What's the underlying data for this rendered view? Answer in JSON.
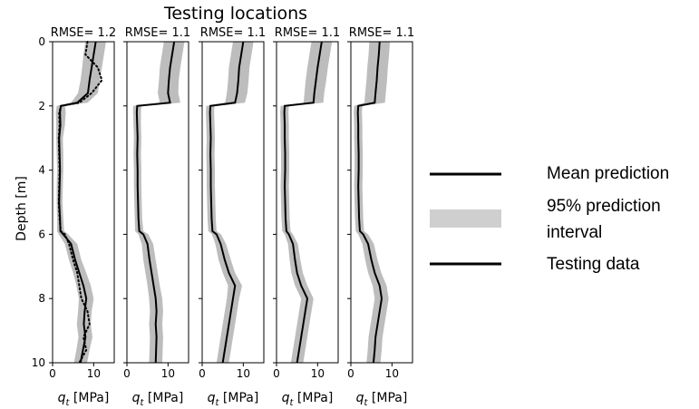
{
  "chart_data": {
    "type": "line",
    "title": "Testing locations",
    "ylabel": "Depth [m]",
    "xlabel_var": "q",
    "xlabel_sub": "t",
    "xlabel_unit": " [MPa]",
    "ylim": [
      0,
      10
    ],
    "y_inverted": true,
    "xlim": [
      0,
      15
    ],
    "x_ticks": [
      0,
      10
    ],
    "x_tick_labels": [
      "0",
      "10"
    ],
    "y_ticks": [
      0,
      2,
      4,
      6,
      8,
      10
    ],
    "y_tick_labels": [
      "0",
      "2",
      "4",
      "6",
      "8",
      "10"
    ],
    "legend": {
      "placement": "right",
      "mean_label": "Mean prediction",
      "pi_label_line1": "95% prediction",
      "pi_label_line2": "interval",
      "data_label": "Testing data"
    },
    "colors": {
      "mean": "#000000",
      "band": "#bdbdbd",
      "data": "#000000"
    },
    "panels": [
      {
        "rmse_label": "RMSE= 1.2",
        "depth": [
          0,
          0.4,
          0.8,
          1.2,
          1.6,
          1.9,
          2.0,
          2.2,
          2.6,
          3.0,
          3.5,
          4.0,
          4.5,
          5.0,
          5.5,
          5.9,
          6.0,
          6.3,
          6.8,
          7.2,
          7.6,
          8.0,
          8.4,
          8.8,
          9.2,
          9.6,
          10.0
        ],
        "mean": [
          10.5,
          10.0,
          9.5,
          9.0,
          8.6,
          6.0,
          2.0,
          1.8,
          1.9,
          1.6,
          1.7,
          1.8,
          1.7,
          1.6,
          1.8,
          1.9,
          2.6,
          4.5,
          5.5,
          6.5,
          7.5,
          8.2,
          7.8,
          7.6,
          8.0,
          7.4,
          6.8
        ],
        "lower": [
          8.0,
          7.5,
          7.2,
          6.8,
          6.2,
          4.5,
          1.0,
          0.8,
          0.9,
          0.9,
          1.0,
          1.1,
          1.0,
          1.0,
          1.1,
          1.1,
          1.5,
          3.0,
          4.0,
          5.0,
          5.8,
          6.4,
          6.2,
          5.9,
          6.3,
          5.8,
          5.2
        ],
        "upper": [
          13.0,
          12.5,
          12.0,
          11.5,
          11.0,
          8.5,
          3.0,
          3.2,
          3.0,
          2.5,
          2.6,
          2.6,
          2.5,
          2.4,
          2.6,
          2.8,
          3.8,
          6.0,
          7.0,
          8.2,
          9.3,
          10.0,
          9.5,
          9.3,
          9.7,
          9.0,
          8.4
        ],
        "data": [
          8.5,
          8.0,
          11.0,
          12.0,
          9.5,
          6.5,
          2.1,
          1.6,
          1.7,
          1.5,
          1.6,
          1.7,
          1.6,
          1.5,
          1.7,
          2.0,
          3.0,
          4.0,
          5.0,
          6.0,
          6.5,
          7.0,
          8.5,
          9.0,
          7.5,
          8.2,
          6.5
        ]
      },
      {
        "rmse_label": "RMSE= 1.1",
        "depth": [
          0,
          0.4,
          0.8,
          1.2,
          1.6,
          1.9,
          2.0,
          2.2,
          2.6,
          3.0,
          3.5,
          4.0,
          4.5,
          5.0,
          5.5,
          5.9,
          6.0,
          6.3,
          6.8,
          7.2,
          7.6,
          8.0,
          8.4,
          8.8,
          9.2,
          9.6,
          10.0
        ],
        "mean": [
          11.5,
          11.0,
          10.5,
          10.2,
          10.0,
          10.5,
          2.5,
          2.4,
          2.5,
          2.6,
          2.5,
          2.6,
          2.6,
          2.7,
          2.8,
          3.0,
          4.0,
          5.0,
          5.5,
          6.0,
          6.5,
          7.0,
          7.2,
          7.0,
          7.2,
          7.1,
          7.0
        ],
        "lower": [
          9.0,
          8.5,
          8.0,
          7.8,
          7.5,
          8.0,
          1.5,
          1.5,
          1.6,
          1.7,
          1.6,
          1.7,
          1.7,
          1.8,
          1.9,
          2.0,
          2.8,
          3.6,
          4.0,
          4.5,
          5.0,
          5.4,
          5.6,
          5.4,
          5.6,
          5.5,
          5.4
        ],
        "upper": [
          14.0,
          13.5,
          13.0,
          12.6,
          12.5,
          13.0,
          3.5,
          3.4,
          3.4,
          3.5,
          3.4,
          3.5,
          3.5,
          3.6,
          3.7,
          4.0,
          5.2,
          6.4,
          7.0,
          7.5,
          8.0,
          8.6,
          8.8,
          8.6,
          8.8,
          8.7,
          8.6
        ]
      },
      {
        "rmse_label": "RMSE= 1.1",
        "depth": [
          0,
          0.4,
          0.8,
          1.2,
          1.6,
          1.9,
          2.0,
          2.2,
          2.6,
          3.0,
          3.5,
          4.0,
          4.5,
          5.0,
          5.5,
          5.9,
          6.0,
          6.3,
          6.8,
          7.2,
          7.6,
          8.0,
          8.4,
          8.8,
          9.2,
          9.6,
          10.0
        ],
        "mean": [
          10.0,
          9.5,
          9.0,
          8.8,
          8.5,
          8.0,
          2.0,
          1.9,
          2.0,
          2.1,
          2.0,
          2.1,
          2.1,
          2.2,
          2.3,
          2.5,
          3.5,
          4.5,
          5.5,
          6.5,
          8.0,
          7.5,
          7.0,
          6.5,
          6.0,
          5.5,
          5.0
        ],
        "lower": [
          7.5,
          7.0,
          6.5,
          6.3,
          6.0,
          5.6,
          1.0,
          0.9,
          1.0,
          1.1,
          1.0,
          1.1,
          1.1,
          1.2,
          1.3,
          1.5,
          2.4,
          3.2,
          4.0,
          5.0,
          6.3,
          6.0,
          5.5,
          5.0,
          4.5,
          4.0,
          3.5
        ],
        "upper": [
          12.5,
          12.0,
          11.5,
          11.3,
          11.0,
          10.4,
          3.0,
          2.9,
          3.0,
          3.1,
          3.0,
          3.1,
          3.1,
          3.2,
          3.3,
          3.5,
          4.6,
          5.8,
          7.0,
          8.0,
          9.7,
          9.0,
          8.5,
          8.0,
          7.5,
          7.0,
          6.5
        ]
      },
      {
        "rmse_label": "RMSE= 1.1",
        "depth": [
          0,
          0.4,
          0.8,
          1.2,
          1.6,
          1.9,
          2.0,
          2.2,
          2.6,
          3.0,
          3.5,
          4.0,
          4.5,
          5.0,
          5.5,
          5.9,
          6.0,
          6.3,
          6.8,
          7.2,
          7.6,
          8.0,
          8.4,
          8.8,
          9.2,
          9.6,
          10.0
        ],
        "mean": [
          11.0,
          10.5,
          10.0,
          9.6,
          9.2,
          9.0,
          2.0,
          1.9,
          2.0,
          2.0,
          2.1,
          2.1,
          2.0,
          2.1,
          2.2,
          2.4,
          3.0,
          4.0,
          4.5,
          5.0,
          6.0,
          7.5,
          7.0,
          6.5,
          6.0,
          5.5,
          5.0
        ],
        "lower": [
          8.5,
          8.0,
          7.5,
          7.1,
          6.8,
          6.6,
          1.0,
          0.9,
          1.0,
          1.0,
          1.1,
          1.1,
          1.0,
          1.1,
          1.2,
          1.4,
          2.0,
          2.8,
          3.2,
          3.6,
          4.5,
          6.0,
          5.5,
          5.0,
          4.5,
          4.0,
          3.5
        ],
        "upper": [
          13.5,
          13.0,
          12.5,
          12.1,
          11.6,
          11.4,
          3.0,
          2.9,
          3.0,
          3.0,
          3.1,
          3.1,
          3.0,
          3.1,
          3.2,
          3.4,
          4.0,
          5.2,
          5.8,
          6.4,
          7.5,
          9.0,
          8.5,
          8.0,
          7.5,
          7.0,
          6.5
        ]
      },
      {
        "rmse_label": "RMSE= 1.1",
        "depth": [
          0,
          0.4,
          0.8,
          1.2,
          1.6,
          1.9,
          2.0,
          2.2,
          2.6,
          3.0,
          3.5,
          4.0,
          4.5,
          5.0,
          5.5,
          5.9,
          6.0,
          6.3,
          6.8,
          7.2,
          7.6,
          8.0,
          8.4,
          8.8,
          9.2,
          9.6,
          10.0
        ],
        "mean": [
          7.0,
          6.8,
          6.5,
          6.3,
          6.0,
          5.8,
          1.8,
          1.7,
          1.8,
          1.8,
          1.9,
          1.9,
          1.8,
          1.9,
          2.0,
          2.2,
          3.0,
          4.2,
          5.0,
          5.8,
          7.0,
          7.5,
          7.0,
          6.5,
          6.0,
          5.8,
          5.5
        ],
        "lower": [
          4.5,
          4.3,
          4.0,
          3.8,
          3.5,
          3.3,
          0.8,
          0.7,
          0.8,
          0.8,
          0.9,
          0.9,
          0.8,
          0.9,
          1.0,
          1.2,
          1.8,
          2.8,
          3.5,
          4.2,
          5.3,
          5.8,
          5.3,
          4.8,
          4.3,
          4.1,
          3.8
        ],
        "upper": [
          9.5,
          9.3,
          9.0,
          8.8,
          8.5,
          8.3,
          2.8,
          2.7,
          2.8,
          2.8,
          2.9,
          2.9,
          2.8,
          2.9,
          3.0,
          3.2,
          4.2,
          5.6,
          6.5,
          7.4,
          8.7,
          9.2,
          8.7,
          8.2,
          7.7,
          7.5,
          7.2
        ]
      }
    ]
  }
}
